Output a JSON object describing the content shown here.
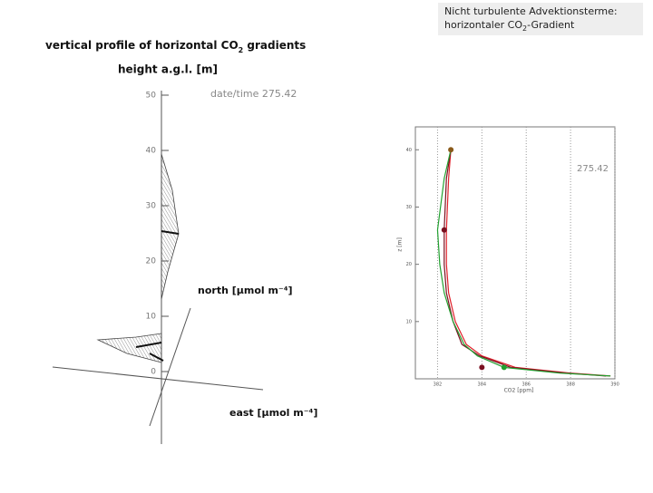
{
  "header": {
    "line1": "Nicht turbulente Advektionsterme:",
    "line2_start": "horizontaler CO",
    "line2_sub": "2",
    "line2_end": "-Gradient"
  },
  "left_figure": {
    "title_start": "vertical profile of horizontal CO",
    "title_sub": "2",
    "title_end": " gradients",
    "height_label": "height a.g.l. [m]",
    "date_label": "date/time 275.42",
    "height_ticks": [
      0,
      10,
      20,
      30,
      40,
      50
    ],
    "north_label": "north [μmol m⁻⁴]",
    "east_label": "east [μmol m⁻⁴]"
  },
  "chart_data": {
    "type": "line",
    "annotation": "275.42",
    "xlabel": "CO2 [ppm]",
    "ylabel": "z [m]",
    "xlim": [
      381,
      390
    ],
    "xticks": [
      382,
      384,
      386,
      388,
      390
    ],
    "ylim": [
      0,
      44
    ],
    "yticks": [
      10,
      20,
      30,
      40
    ],
    "grid": true,
    "series": [
      {
        "color": "#e0202a",
        "x": [
          389.8,
          388,
          385.5,
          384,
          383.3,
          382.8,
          382.5,
          382.4,
          382.4,
          382.5,
          382.6
        ],
        "values": [
          0.5,
          1,
          2,
          4,
          6,
          10,
          15,
          20,
          26,
          35,
          40
        ]
      },
      {
        "color": "#7a1020",
        "x": [
          389.6,
          387.8,
          385.3,
          383.9,
          383.1,
          382.7,
          382.4,
          382.3,
          382.3,
          382.4,
          382.6
        ],
        "values": [
          0.5,
          1,
          2,
          4,
          6,
          10,
          15,
          20,
          26,
          35,
          40
        ]
      },
      {
        "color": "#22a030",
        "x": [
          389.8,
          387.5,
          385,
          383.8,
          383.2,
          382.7,
          382.3,
          382.1,
          382.0,
          382.3,
          382.6
        ],
        "values": [
          0.5,
          1,
          2,
          4,
          6,
          10,
          15,
          20,
          26,
          35,
          40
        ]
      }
    ],
    "markers": [
      {
        "color": "#8a5a1a",
        "x": [
          382.6
        ],
        "values": [
          40
        ]
      },
      {
        "color": "#7a1020",
        "x": [
          382.3,
          384
        ],
        "values": [
          26,
          2
        ]
      },
      {
        "color": "#22a030",
        "x": [
          385
        ],
        "values": [
          2
        ]
      }
    ]
  }
}
